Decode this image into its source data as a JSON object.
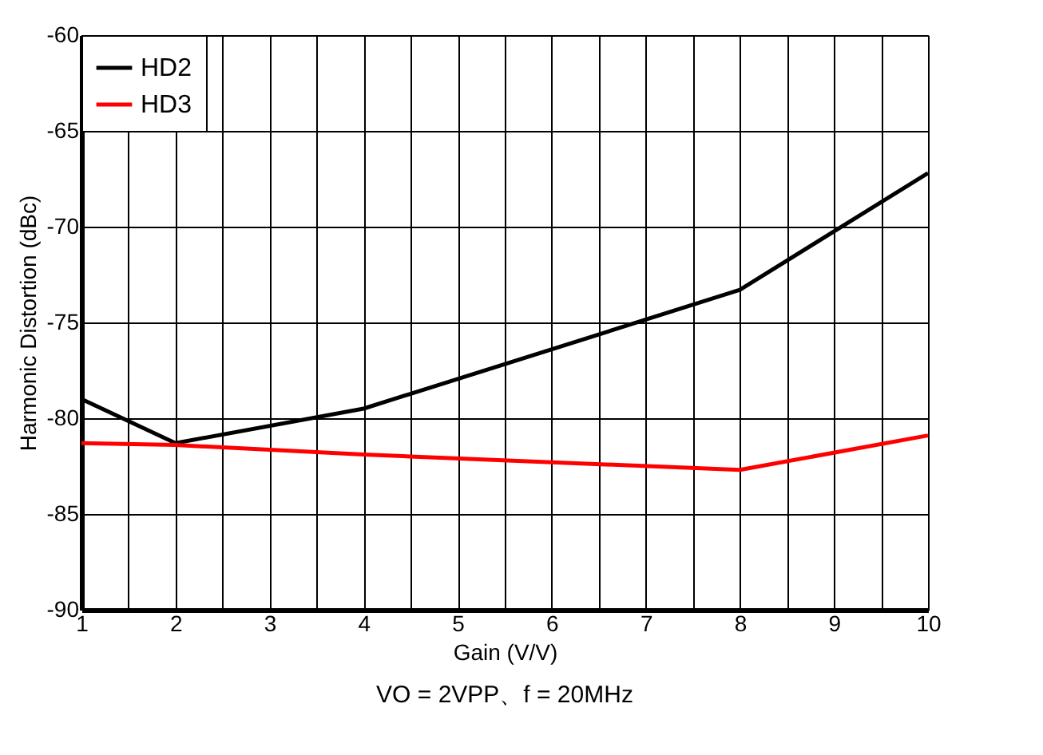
{
  "chart_data": {
    "type": "line",
    "xlabel": "Gain (V/V)",
    "ylabel": "Harmonic Distortion (dBc)",
    "x": [
      1,
      2,
      4,
      8,
      10
    ],
    "series": [
      {
        "name": "HD2",
        "color": "#000000",
        "values": [
          -79.0,
          -81.3,
          -79.5,
          -73.3,
          -67.2
        ]
      },
      {
        "name": "HD3",
        "color": "#ff0000",
        "values": [
          -81.3,
          -81.4,
          -81.9,
          -82.7,
          -80.9
        ]
      }
    ],
    "xlim": [
      1,
      10
    ],
    "xticks": [
      1,
      {
        "value": 1.5,
        "label": null
      },
      2,
      {
        "value": 2.5,
        "label": null
      },
      3,
      {
        "value": 3.5,
        "label": null
      },
      4,
      {
        "value": 4.5,
        "label": null
      },
      5,
      {
        "value": 5.5,
        "label": null
      },
      6,
      {
        "value": 6.5,
        "label": null
      },
      7,
      {
        "value": 7.5,
        "label": null
      },
      8,
      {
        "value": 8.5,
        "label": null
      },
      9,
      {
        "value": 9.5,
        "label": null
      },
      10
    ],
    "ylim": [
      -90,
      -60
    ],
    "yticks": [
      -90,
      -85,
      -80,
      -75,
      -70,
      -65,
      -60
    ],
    "grid": true,
    "legend": "top left",
    "marker": "none",
    "line_style": "solid",
    "annotations": [
      "VO = 2VPP、f = 20MHz"
    ]
  }
}
